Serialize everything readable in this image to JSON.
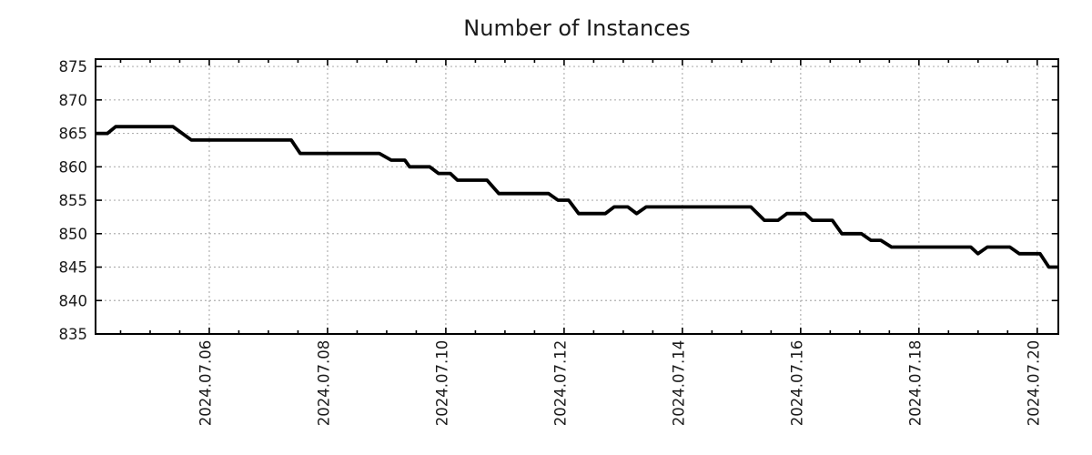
{
  "title": "Number of Instances",
  "colors": {
    "line": "#000000",
    "grid": "#b0b0b0",
    "spine": "#000000",
    "tick": "#000000",
    "text": "#1a1a1a",
    "background": "#ffffff"
  },
  "chart_data": {
    "type": "line",
    "title": "Number of Instances",
    "xlabel": "",
    "ylabel": "",
    "grid": true,
    "legend_position": "none",
    "x_unit": "days_from_axis_start",
    "xlim": [
      0,
      16.28
    ],
    "ylim": [
      835,
      876.1
    ],
    "y_ticks": [
      875,
      870,
      865,
      860,
      855,
      850,
      845,
      840,
      835
    ],
    "x_major_ticks": [
      {
        "offset": 1.923,
        "label": "2024.07.06"
      },
      {
        "offset": 3.923,
        "label": "2024.07.08"
      },
      {
        "offset": 5.923,
        "label": "2024.07.10"
      },
      {
        "offset": 7.923,
        "label": "2024.07.12"
      },
      {
        "offset": 9.923,
        "label": "2024.07.14"
      },
      {
        "offset": 11.923,
        "label": "2024.07.16"
      },
      {
        "offset": 13.923,
        "label": "2024.07.18"
      },
      {
        "offset": 15.923,
        "label": "2024.07.20"
      }
    ],
    "x_minor_tick_start": 0.423,
    "x_minor_tick_step": 0.5,
    "series": [
      {
        "name": "Number of Instances",
        "color": "#000000",
        "points": [
          [
            0.0,
            865
          ],
          [
            0.2,
            865
          ],
          [
            0.34,
            866
          ],
          [
            1.31,
            866
          ],
          [
            1.62,
            864
          ],
          [
            3.31,
            864
          ],
          [
            3.46,
            862
          ],
          [
            4.8,
            862
          ],
          [
            5.0,
            861
          ],
          [
            5.23,
            861
          ],
          [
            5.31,
            860
          ],
          [
            5.65,
            860
          ],
          [
            5.8,
            859
          ],
          [
            6.0,
            859
          ],
          [
            6.12,
            858
          ],
          [
            6.62,
            858
          ],
          [
            6.82,
            856
          ],
          [
            7.66,
            856
          ],
          [
            7.82,
            855
          ],
          [
            8.0,
            855
          ],
          [
            8.17,
            853
          ],
          [
            8.62,
            853
          ],
          [
            8.77,
            854
          ],
          [
            9.0,
            854
          ],
          [
            9.15,
            853
          ],
          [
            9.31,
            854
          ],
          [
            11.08,
            854
          ],
          [
            11.31,
            852
          ],
          [
            11.54,
            852
          ],
          [
            11.69,
            853
          ],
          [
            12.0,
            853
          ],
          [
            12.12,
            852
          ],
          [
            12.46,
            852
          ],
          [
            12.62,
            850
          ],
          [
            12.95,
            850
          ],
          [
            13.11,
            849
          ],
          [
            13.28,
            849
          ],
          [
            13.46,
            848
          ],
          [
            14.8,
            848
          ],
          [
            14.92,
            847
          ],
          [
            15.08,
            848
          ],
          [
            15.46,
            848
          ],
          [
            15.62,
            847
          ],
          [
            15.97,
            847
          ],
          [
            16.12,
            845
          ],
          [
            16.28,
            845
          ]
        ]
      }
    ]
  }
}
